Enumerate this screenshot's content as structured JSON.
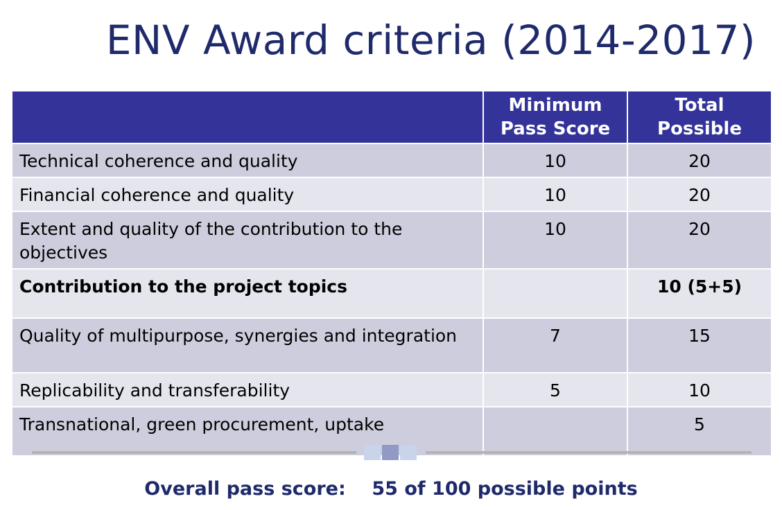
{
  "title": "ENV Award criteria (2014-2017)",
  "table": {
    "headers": [
      "",
      "Minimum\nPass Score",
      "Total\nPossible"
    ],
    "rows": [
      {
        "criterion": "Technical coherence and quality",
        "min": "10",
        "total": "20"
      },
      {
        "criterion": "Financial coherence and quality",
        "min": "10",
        "total": "20"
      },
      {
        "criterion": "Extent and quality of the contribution to the objectives",
        "min": "10",
        "total": "20"
      },
      {
        "criterion": "Contribution to the project topics",
        "min": "",
        "total": "10 (5+5)"
      },
      {
        "criterion": "Quality of multipurpose, synergies and integration",
        "min": "7",
        "total": "15"
      },
      {
        "criterion": "Replicability and transferability",
        "min": "5",
        "total": "10"
      },
      {
        "criterion": "Transnational, green procurement, uptake",
        "min": "",
        "total": "5"
      }
    ]
  },
  "footer": {
    "label": "Overall pass score:",
    "value": "55 of 100 possible points"
  },
  "colors": {
    "header_bg": "#333399",
    "title_text": "#1f2a6b",
    "row_dark": "#cdcddd",
    "row_light": "#e5e5ee",
    "divider_squares": [
      "#c9d3ea",
      "#9199c4",
      "#c9d3ea"
    ]
  }
}
